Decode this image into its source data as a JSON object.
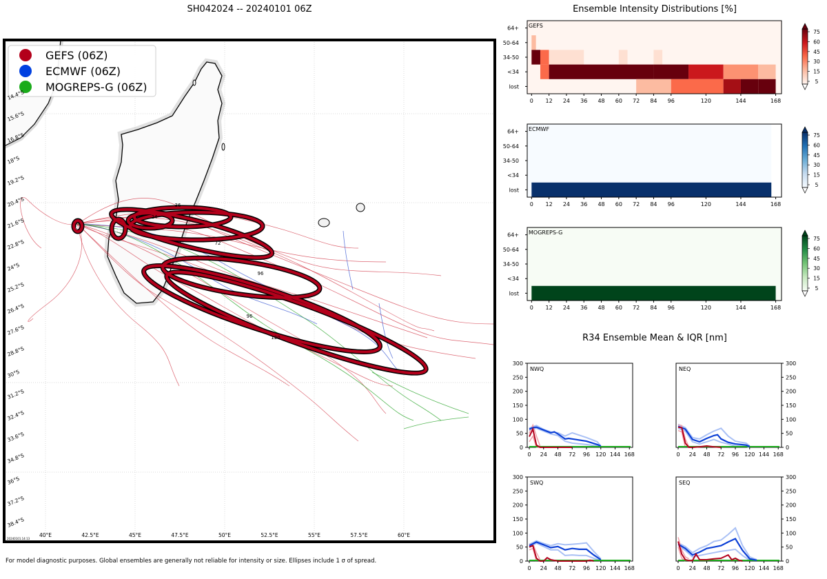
{
  "title": "SH042024 -- 20240101 06Z",
  "footer": "For model diagnostic purposes. Global ensembles are generally not reliable for intensity or size. Ellipses include 1 σ of spread.",
  "map": {
    "legend": [
      "GEFS (06Z)",
      "ECMWF (06Z)",
      "MOGREPS-G (06Z)"
    ],
    "legend_colors": [
      "#b3001b",
      "#0040e0",
      "#1aab1a"
    ],
    "lat_labels": [
      "14.4°S",
      "15.6°S",
      "16.8°S",
      "18°S",
      "19.2°S",
      "20.4°S",
      "21.6°S",
      "22.8°S",
      "24°S",
      "25.2°S",
      "26.4°S",
      "27.6°S",
      "28.8°S",
      "30°S",
      "31.2°S",
      "32.4°S",
      "33.6°S",
      "34.8°S",
      "36°S",
      "37.2°S",
      "38.4°S"
    ],
    "lon_labels": [
      "40°E",
      "42.5°E",
      "45°E",
      "47.5°E",
      "50°E",
      "52.5°E",
      "55°E",
      "57.5°E",
      "60°E"
    ],
    "ellipse_labels": [
      "0",
      "24",
      "36",
      "48",
      "72",
      "96",
      "96",
      "120"
    ],
    "timestamp": "20240101.14:13"
  },
  "chart_data": [
    {
      "type": "heatmap",
      "title": "Ensemble Intensity Distributions [%]",
      "panel": "GEFS",
      "colormap": "Reds",
      "y_categories": [
        "64+",
        "50-64",
        "34-50",
        "<34",
        "lost"
      ],
      "x_ticks": [
        "0",
        "12",
        "24",
        "36",
        "48",
        "60",
        "72",
        "84",
        "96",
        "120",
        "144",
        "168"
      ],
      "colorbar_ticks": [
        "75",
        "60",
        "45",
        "30",
        "15",
        "5"
      ],
      "cells_pct": {
        "50-64": [
          [
            0,
            3,
            20
          ]
        ],
        "34-50": [
          [
            0,
            6,
            95
          ],
          [
            6,
            12,
            40
          ],
          [
            12,
            36,
            10
          ],
          [
            60,
            66,
            8
          ],
          [
            84,
            90,
            8
          ]
        ],
        "<34": [
          [
            6,
            12,
            40
          ],
          [
            12,
            84,
            95
          ],
          [
            84,
            108,
            85
          ],
          [
            108,
            132,
            60
          ],
          [
            132,
            156,
            30
          ],
          [
            156,
            168,
            15
          ]
        ],
        "lost": [
          [
            72,
            96,
            20
          ],
          [
            96,
            132,
            40
          ],
          [
            132,
            144,
            70
          ],
          [
            144,
            156,
            85
          ],
          [
            156,
            168,
            95
          ]
        ]
      }
    },
    {
      "type": "heatmap",
      "panel": "ECMWF",
      "colormap": "Blues",
      "y_categories": [
        "64+",
        "50-64",
        "34-50",
        "<34",
        "lost"
      ],
      "x_ticks": [
        "0",
        "12",
        "24",
        "36",
        "48",
        "60",
        "72",
        "84",
        "96",
        "120",
        "144",
        "168"
      ],
      "colorbar_ticks": [
        "75",
        "60",
        "45",
        "30",
        "15",
        "5"
      ],
      "x_range": [
        0,
        165
      ],
      "cells_pct": {
        "lost": [
          [
            0,
            165,
            100
          ]
        ]
      }
    },
    {
      "type": "heatmap",
      "panel": "MOGREPS-G",
      "colormap": "Greens",
      "y_categories": [
        "64+",
        "50-64",
        "34-50",
        "<34",
        "lost"
      ],
      "x_ticks": [
        "0",
        "12",
        "24",
        "36",
        "48",
        "60",
        "72",
        "84",
        "96",
        "120",
        "144",
        "168"
      ],
      "colorbar_ticks": [
        "75",
        "60",
        "45",
        "30",
        "15",
        "5"
      ],
      "cells_pct": {
        "lost": [
          [
            0,
            168,
            100
          ]
        ]
      }
    },
    {
      "type": "line",
      "title": "R34 Ensemble Mean & IQR [nm]",
      "ylim": [
        0,
        300
      ],
      "xlim": [
        0,
        170
      ],
      "x_ticks": [
        "0",
        "24",
        "48",
        "72",
        "96",
        "120",
        "144",
        "168"
      ],
      "y_ticks": [
        "0",
        "50",
        "100",
        "150",
        "200",
        "250",
        "300"
      ],
      "quadrants": [
        {
          "name": "NWQ",
          "ecmwf_mean": [
            [
              0,
              65
            ],
            [
              6,
              70
            ],
            [
              12,
              72
            ],
            [
              24,
              62
            ],
            [
              36,
              52
            ],
            [
              42,
              55
            ],
            [
              48,
              48
            ],
            [
              60,
              30
            ],
            [
              66,
              32
            ],
            [
              72,
              30
            ],
            [
              96,
              22
            ],
            [
              114,
              10
            ],
            [
              120,
              5
            ]
          ],
          "ecmwf_iqr_hi": [
            [
              0,
              68
            ],
            [
              6,
              74
            ],
            [
              12,
              78
            ],
            [
              24,
              64
            ],
            [
              36,
              55
            ],
            [
              48,
              52
            ],
            [
              60,
              40
            ],
            [
              72,
              52
            ],
            [
              96,
              35
            ],
            [
              114,
              20
            ],
            [
              120,
              5
            ]
          ],
          "ecmwf_iqr_lo": [
            [
              0,
              60
            ],
            [
              6,
              66
            ],
            [
              12,
              68
            ],
            [
              24,
              58
            ],
            [
              36,
              48
            ],
            [
              48,
              42
            ],
            [
              60,
              22
            ],
            [
              72,
              15
            ],
            [
              96,
              10
            ],
            [
              114,
              5
            ],
            [
              120,
              2
            ]
          ],
          "gefs_mean": [
            [
              0,
              38
            ],
            [
              6,
              65
            ],
            [
              12,
              8
            ],
            [
              18,
              0
            ],
            [
              72,
              0
            ]
          ],
          "gefs_iqr_hi": [
            [
              0,
              50
            ],
            [
              6,
              80
            ],
            [
              12,
              40
            ],
            [
              18,
              5
            ]
          ],
          "gefs_iqr_lo": [
            [
              0,
              20
            ],
            [
              6,
              40
            ],
            [
              12,
              0
            ],
            [
              18,
              0
            ]
          ]
        },
        {
          "name": "NEQ",
          "ecmwf_mean": [
            [
              0,
              75
            ],
            [
              12,
              65
            ],
            [
              24,
              28
            ],
            [
              36,
              20
            ],
            [
              48,
              32
            ],
            [
              60,
              42
            ],
            [
              66,
              45
            ],
            [
              72,
              30
            ],
            [
              84,
              18
            ],
            [
              96,
              12
            ],
            [
              114,
              8
            ],
            [
              120,
              3
            ]
          ],
          "ecmwf_iqr_hi": [
            [
              0,
              82
            ],
            [
              12,
              70
            ],
            [
              24,
              35
            ],
            [
              36,
              30
            ],
            [
              48,
              45
            ],
            [
              60,
              58
            ],
            [
              72,
              68
            ],
            [
              84,
              40
            ],
            [
              96,
              22
            ],
            [
              114,
              15
            ],
            [
              120,
              5
            ]
          ],
          "ecmwf_iqr_lo": [
            [
              0,
              68
            ],
            [
              12,
              58
            ],
            [
              24,
              20
            ],
            [
              36,
              12
            ],
            [
              48,
              20
            ],
            [
              60,
              28
            ],
            [
              72,
              18
            ],
            [
              84,
              12
            ],
            [
              96,
              5
            ],
            [
              114,
              3
            ],
            [
              120,
              0
            ]
          ],
          "gefs_mean": [
            [
              0,
              72
            ],
            [
              6,
              70
            ],
            [
              12,
              15
            ],
            [
              18,
              0
            ],
            [
              24,
              0
            ],
            [
              36,
              2
            ],
            [
              48,
              5
            ],
            [
              60,
              2
            ],
            [
              72,
              0
            ]
          ],
          "gefs_iqr_hi": [
            [
              0,
              80
            ],
            [
              6,
              78
            ],
            [
              12,
              30
            ],
            [
              18,
              2
            ]
          ],
          "gefs_iqr_lo": [
            [
              0,
              60
            ],
            [
              6,
              55
            ],
            [
              12,
              0
            ]
          ]
        },
        {
          "name": "SWQ",
          "ecmwf_mean": [
            [
              0,
              55
            ],
            [
              12,
              68
            ],
            [
              24,
              58
            ],
            [
              36,
              48
            ],
            [
              48,
              52
            ],
            [
              60,
              40
            ],
            [
              72,
              45
            ],
            [
              84,
              42
            ],
            [
              96,
              42
            ],
            [
              108,
              22
            ],
            [
              120,
              5
            ]
          ],
          "ecmwf_iqr_hi": [
            [
              0,
              60
            ],
            [
              12,
              72
            ],
            [
              24,
              63
            ],
            [
              36,
              55
            ],
            [
              48,
              62
            ],
            [
              60,
              58
            ],
            [
              72,
              60
            ],
            [
              84,
              62
            ],
            [
              96,
              65
            ],
            [
              108,
              35
            ],
            [
              120,
              8
            ]
          ],
          "ecmwf_iqr_lo": [
            [
              0,
              50
            ],
            [
              12,
              64
            ],
            [
              24,
              52
            ],
            [
              36,
              40
            ],
            [
              48,
              40
            ],
            [
              60,
              20
            ],
            [
              72,
              22
            ],
            [
              84,
              20
            ],
            [
              96,
              20
            ],
            [
              108,
              10
            ],
            [
              120,
              2
            ]
          ],
          "gefs_mean": [
            [
              0,
              50
            ],
            [
              6,
              55
            ],
            [
              12,
              10
            ],
            [
              18,
              0
            ],
            [
              24,
              0
            ],
            [
              30,
              12
            ],
            [
              36,
              5
            ],
            [
              48,
              0
            ],
            [
              96,
              0
            ],
            [
              102,
              3
            ],
            [
              108,
              0
            ]
          ],
          "gefs_iqr_hi": [
            [
              0,
              58
            ],
            [
              6,
              62
            ],
            [
              12,
              30
            ],
            [
              18,
              5
            ]
          ],
          "gefs_iqr_lo": [
            [
              0,
              40
            ],
            [
              6,
              45
            ],
            [
              12,
              0
            ]
          ]
        },
        {
          "name": "SEQ",
          "ecmwf_mean": [
            [
              0,
              60
            ],
            [
              12,
              45
            ],
            [
              24,
              22
            ],
            [
              36,
              32
            ],
            [
              48,
              45
            ],
            [
              60,
              50
            ],
            [
              72,
              55
            ],
            [
              84,
              68
            ],
            [
              96,
              80
            ],
            [
              108,
              38
            ],
            [
              120,
              8
            ],
            [
              132,
              3
            ]
          ],
          "ecmwf_iqr_hi": [
            [
              0,
              65
            ],
            [
              12,
              52
            ],
            [
              24,
              30
            ],
            [
              36,
              45
            ],
            [
              48,
              55
            ],
            [
              60,
              70
            ],
            [
              72,
              75
            ],
            [
              84,
              95
            ],
            [
              96,
              118
            ],
            [
              108,
              55
            ],
            [
              120,
              15
            ],
            [
              132,
              5
            ]
          ],
          "ecmwf_iqr_lo": [
            [
              0,
              55
            ],
            [
              12,
              38
            ],
            [
              24,
              15
            ],
            [
              36,
              20
            ],
            [
              48,
              25
            ],
            [
              60,
              30
            ],
            [
              72,
              35
            ],
            [
              84,
              38
            ],
            [
              96,
              42
            ],
            [
              108,
              20
            ],
            [
              120,
              3
            ]
          ],
          "gefs_mean": [
            [
              0,
              70
            ],
            [
              6,
              25
            ],
            [
              12,
              5
            ],
            [
              18,
              2
            ],
            [
              24,
              2
            ],
            [
              30,
              25
            ],
            [
              36,
              5
            ],
            [
              48,
              5
            ],
            [
              60,
              8
            ],
            [
              72,
              10
            ],
            [
              84,
              22
            ],
            [
              90,
              5
            ],
            [
              96,
              10
            ],
            [
              102,
              3
            ],
            [
              108,
              0
            ]
          ],
          "gefs_iqr_hi": [
            [
              0,
              85
            ],
            [
              6,
              40
            ],
            [
              12,
              15
            ],
            [
              18,
              8
            ]
          ],
          "gefs_iqr_lo": [
            [
              0,
              50
            ],
            [
              6,
              10
            ],
            [
              12,
              0
            ]
          ]
        }
      ]
    }
  ]
}
